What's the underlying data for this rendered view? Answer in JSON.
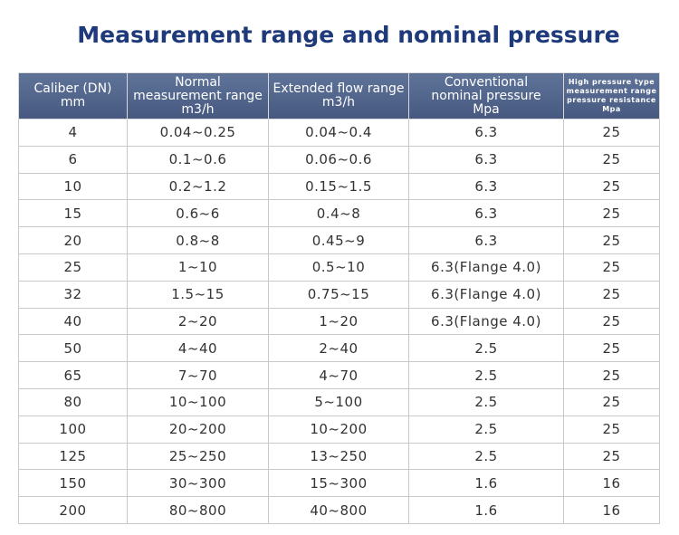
{
  "header": {
    "title": "Measurement range and nominal pressure"
  },
  "table": {
    "columns": [
      [
        "Caliber (DN)",
        "mm"
      ],
      [
        "Normal",
        "measurement range",
        "m3/h"
      ],
      [
        "Extended flow range",
        "m3/h"
      ],
      [
        "Conventional",
        "nominal pressure",
        "Mpa"
      ],
      [
        "High pressure type",
        "measurement range",
        "pressure resistance",
        "Mpa"
      ]
    ],
    "rows": [
      [
        "4",
        "0.04~0.25",
        "0.04~0.4",
        "6.3",
        "25"
      ],
      [
        "6",
        "0.1~0.6",
        "0.06~0.6",
        "6.3",
        "25"
      ],
      [
        "10",
        "0.2~1.2",
        "0.15~1.5",
        "6.3",
        "25"
      ],
      [
        "15",
        "0.6~6",
        "0.4~8",
        "6.3",
        "25"
      ],
      [
        "20",
        "0.8~8",
        "0.45~9",
        "6.3",
        "25"
      ],
      [
        "25",
        "1~10",
        "0.5~10",
        "6.3(Flange 4.0)",
        "25"
      ],
      [
        "32",
        "1.5~15",
        "0.75~15",
        "6.3(Flange 4.0)",
        "25"
      ],
      [
        "40",
        "2~20",
        "1~20",
        "6.3(Flange 4.0)",
        "25"
      ],
      [
        "50",
        "4~40",
        "2~40",
        "2.5",
        "25"
      ],
      [
        "65",
        "7~70",
        "4~70",
        "2.5",
        "25"
      ],
      [
        "80",
        "10~100",
        "5~100",
        "2.5",
        "25"
      ],
      [
        "100",
        "20~200",
        "10~200",
        "2.5",
        "25"
      ],
      [
        "125",
        "25~250",
        "13~250",
        "2.5",
        "25"
      ],
      [
        "150",
        "30~300",
        "15~300",
        "1.6",
        "16"
      ],
      [
        "200",
        "80~800",
        "40~800",
        "1.6",
        "16"
      ]
    ]
  }
}
